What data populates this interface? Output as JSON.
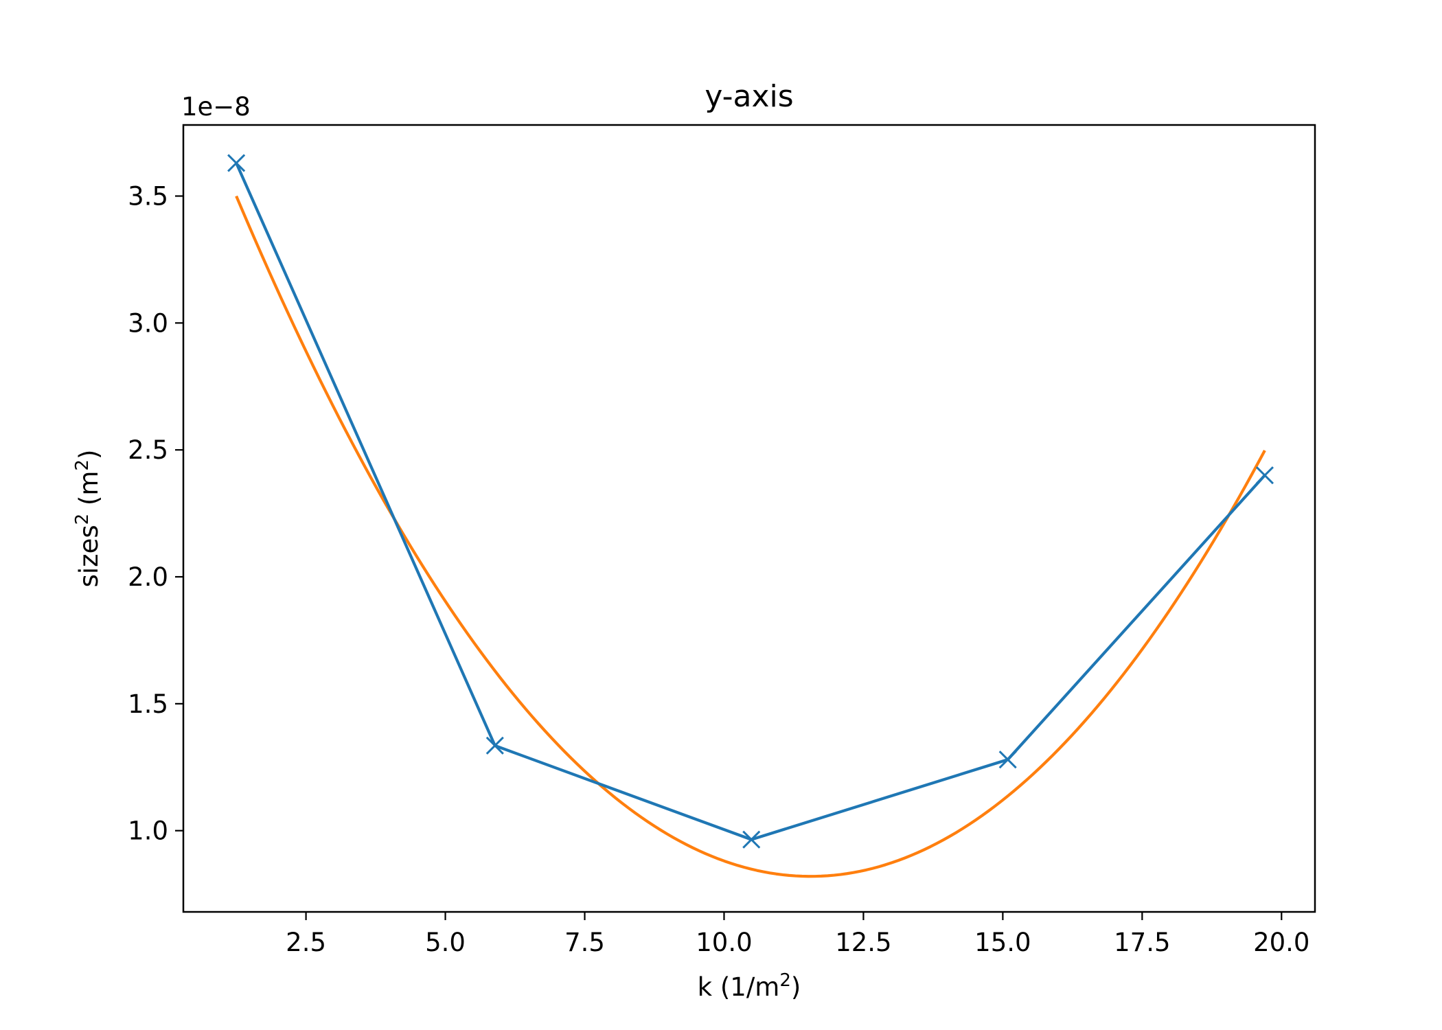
{
  "chart_data": {
    "type": "line",
    "title": "y-axis",
    "xlabel": {
      "pre": "k (1/m",
      "sup": "2",
      "post": ")"
    },
    "ylabel": {
      "pre": "sizes",
      "sup1": "2",
      "mid": " (m",
      "sup2": "2",
      "post": ")"
    },
    "y_offset_text": "1e−8",
    "xlim": [
      0.3,
      20.6
    ],
    "ylim": [
      0.68,
      3.78
    ],
    "y_scale_factor": "1e-8",
    "x_ticks": [
      2.5,
      5.0,
      7.5,
      10.0,
      12.5,
      15.0,
      17.5,
      20.0
    ],
    "x_tick_labels": [
      "2.5",
      "5.0",
      "7.5",
      "10.0",
      "12.5",
      "15.0",
      "17.5",
      "20.0"
    ],
    "y_ticks": [
      1.0,
      1.5,
      2.0,
      2.5,
      3.0,
      3.5
    ],
    "y_tick_labels": [
      "1.0",
      "1.5",
      "2.0",
      "2.5",
      "3.0",
      "3.5"
    ],
    "grid": false,
    "series": [
      {
        "color": "#1f77b4",
        "marker": "x",
        "x": [
          1.25,
          5.89,
          10.49,
          15.09,
          19.7
        ],
        "y": [
          3.63,
          1.335,
          0.965,
          1.28,
          2.4
        ]
      },
      {
        "color": "#ff7f0e",
        "marker": "none",
        "fit": "quadratic",
        "vertex": [
          11.55,
          0.82
        ],
        "x_range": [
          1.25,
          19.7
        ],
        "y_at_ends": [
          3.5,
          2.5
        ]
      }
    ]
  }
}
